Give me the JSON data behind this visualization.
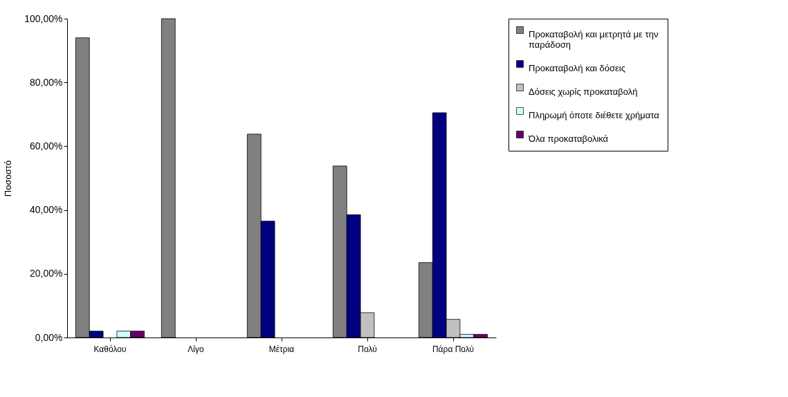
{
  "chart_data": {
    "type": "bar",
    "ylabel": "Ποσοστό",
    "categories": [
      "Καθόλου",
      "Λίγο",
      "Μέτρια",
      "Πολύ",
      "Πάρα Πολύ"
    ],
    "series": [
      {
        "name": "Προκαταβολή και μετρητά  με την παράδοση",
        "color": "#808080",
        "values": [
          94.0,
          100,
          63.8,
          53.8,
          23.5
        ]
      },
      {
        "name": "Προκαταβολή και δόσεις",
        "color": "#000080",
        "values": [
          2.0,
          0,
          36.5,
          38.5,
          70.5
        ]
      },
      {
        "name": "Δόσεις χωρίς προκαταβολή",
        "color": "#c0c0c0",
        "values": [
          0,
          0,
          0,
          7.8,
          5.7
        ]
      },
      {
        "name": "Πληρωμή όποτε διέθετε χρήματα",
        "color": "#ccffff",
        "values": [
          2.0,
          0,
          0,
          0,
          1.0
        ]
      },
      {
        "name": "Όλα προκαταβολικά",
        "color": "#660066",
        "values": [
          2.0,
          0,
          0,
          0,
          1.0
        ]
      }
    ],
    "ylim": [
      0,
      100
    ],
    "yticks": [
      {
        "value": 0,
        "label": "0,00%"
      },
      {
        "value": 20,
        "label": "20,00%"
      },
      {
        "value": 40,
        "label": "40,00%"
      },
      {
        "value": 60,
        "label": "60,00%"
      },
      {
        "value": 80,
        "label": "80,00%"
      },
      {
        "value": 100,
        "label": "100,00%"
      }
    ],
    "grid": false,
    "legend": "right"
  }
}
